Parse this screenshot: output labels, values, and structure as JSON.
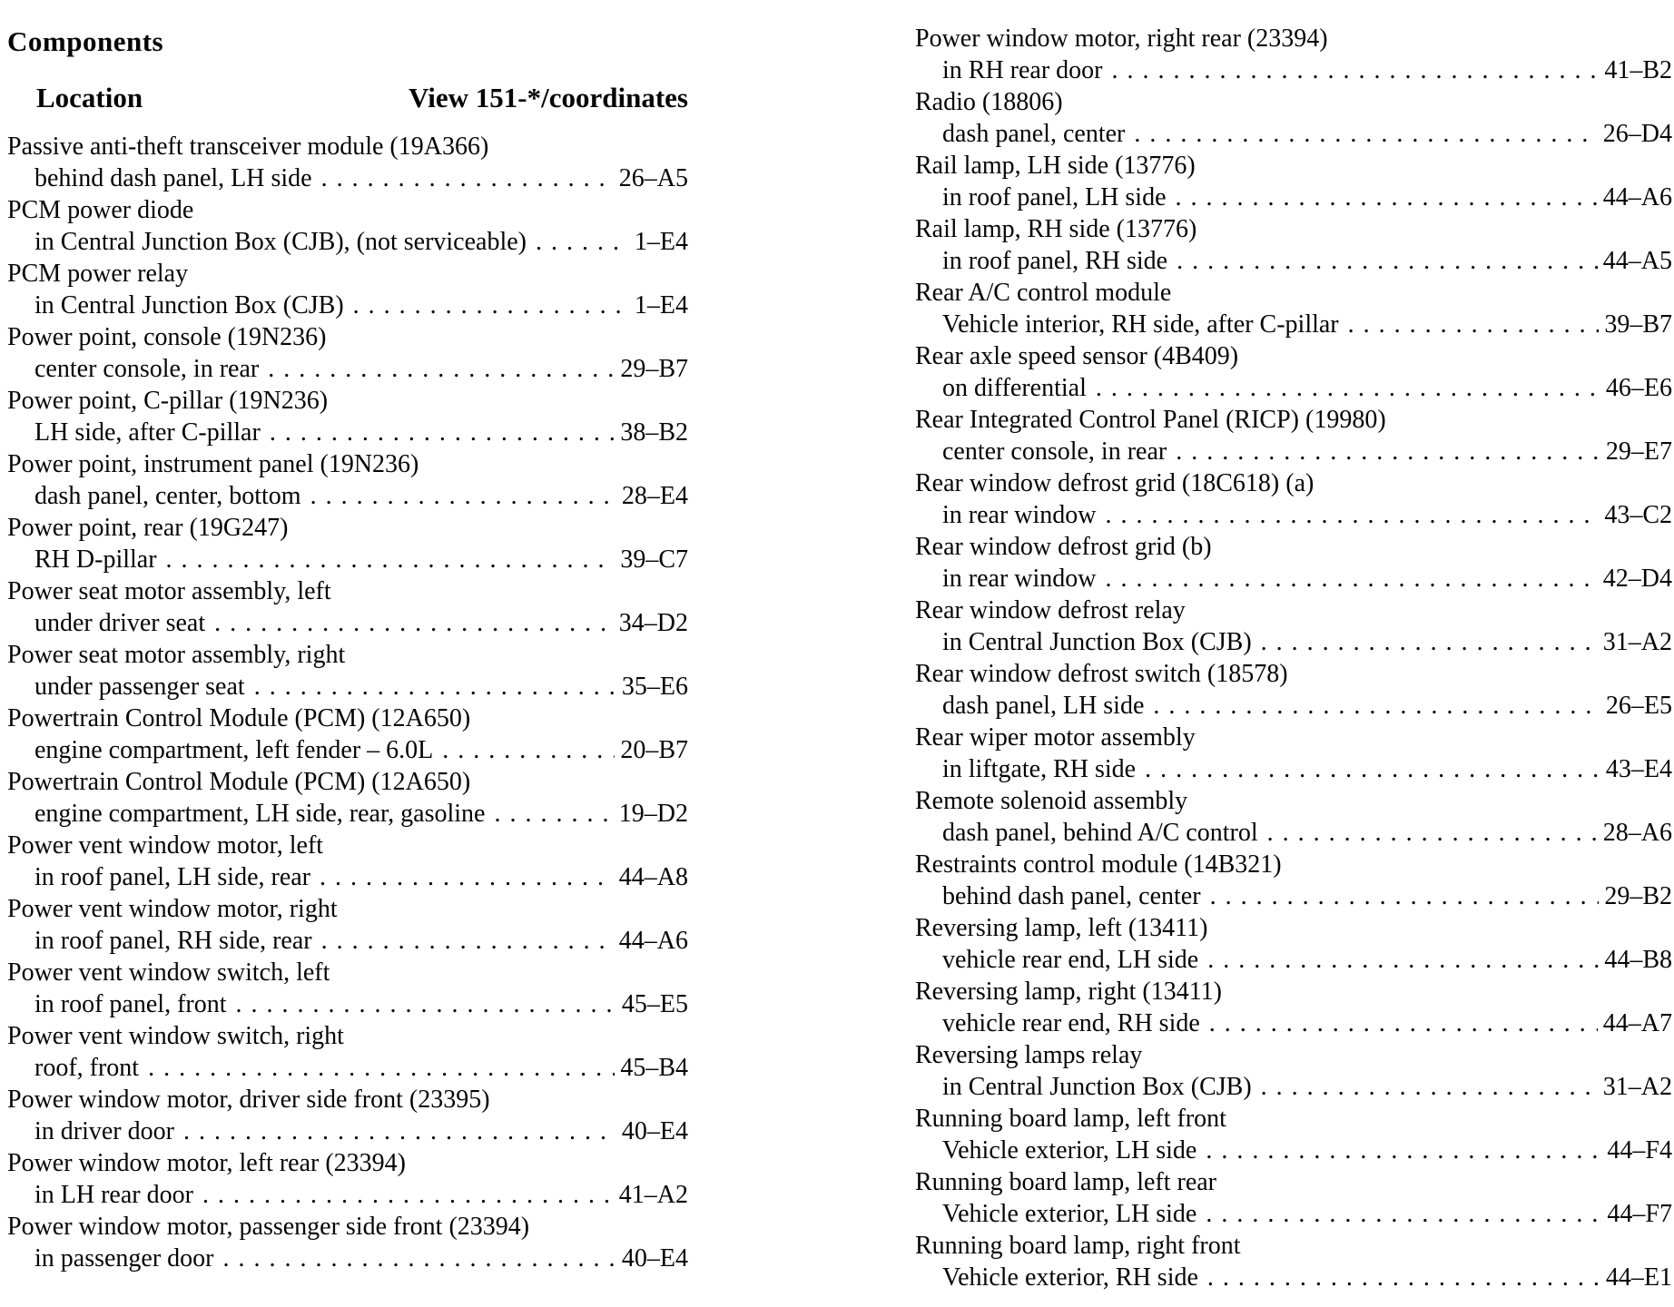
{
  "header": {
    "title": "Components",
    "col_location": "Location",
    "col_view": "View 151-*/coordinates"
  },
  "columns": {
    "left": [
      {
        "name": "Passive anti-theft transceiver module (19A366)",
        "location": "behind dash panel, LH side",
        "coord": "26–A5"
      },
      {
        "name": "PCM power diode",
        "location": "in Central Junction Box (CJB), (not serviceable)",
        "coord": "1–E4"
      },
      {
        "name": "PCM power relay",
        "location": "in Central Junction Box (CJB)",
        "coord": "1–E4"
      },
      {
        "name": "Power point, console (19N236)",
        "location": "center console, in rear",
        "coord": "29–B7"
      },
      {
        "name": "Power point, C-pillar (19N236)",
        "location": "LH side, after C-pillar",
        "coord": "38–B2"
      },
      {
        "name": "Power point, instrument panel (19N236)",
        "location": "dash panel, center, bottom",
        "coord": "28–E4"
      },
      {
        "name": "Power point, rear (19G247)",
        "location": "RH D-pillar",
        "coord": "39–C7"
      },
      {
        "name": "Power seat motor assembly, left",
        "location": "under driver seat",
        "coord": "34–D2"
      },
      {
        "name": "Power seat motor assembly, right",
        "location": "under passenger seat",
        "coord": "35–E6"
      },
      {
        "name": "Powertrain Control Module (PCM) (12A650)",
        "location": "engine compartment, left fender – 6.0L",
        "coord": "20–B7"
      },
      {
        "name": "Powertrain Control Module (PCM) (12A650)",
        "location": "engine compartment, LH side, rear, gasoline",
        "coord": "19–D2"
      },
      {
        "name": "Power vent window motor, left",
        "location": "in roof panel, LH side, rear",
        "coord": "44–A8"
      },
      {
        "name": "Power vent window motor, right",
        "location": "in roof panel, RH side, rear",
        "coord": "44–A6"
      },
      {
        "name": "Power vent window switch, left",
        "location": "in roof panel, front",
        "coord": "45–E5"
      },
      {
        "name": "Power vent window switch, right",
        "location": "roof, front",
        "coord": "45–B4"
      },
      {
        "name": "Power window motor, driver side front (23395)",
        "location": "in driver door",
        "coord": "40–E4"
      },
      {
        "name": "Power window motor, left rear (23394)",
        "location": "in LH rear door",
        "coord": "41–A2"
      },
      {
        "name": "Power window motor, passenger side front (23394)",
        "location": "in passenger door",
        "coord": "40–E4"
      }
    ],
    "right": [
      {
        "name": "Power window motor, right rear (23394)",
        "location": "in RH rear door",
        "coord": "41–B2"
      },
      {
        "name": "Radio (18806)",
        "location": "dash panel, center",
        "coord": "26–D4"
      },
      {
        "name": "Rail lamp, LH side (13776)",
        "location": "in roof panel, LH side",
        "coord": "44–A6"
      },
      {
        "name": "Rail lamp, RH side (13776)",
        "location": "in roof panel, RH side",
        "coord": "44–A5"
      },
      {
        "name": "Rear A/C control module",
        "location": "Vehicle interior, RH side, after C-pillar",
        "coord": "39–B7"
      },
      {
        "name": "Rear axle speed sensor (4B409)",
        "location": "on differential",
        "coord": "46–E6"
      },
      {
        "name": "Rear Integrated Control Panel (RICP) (19980)",
        "location": "center console, in rear",
        "coord": "29–E7"
      },
      {
        "name": "Rear window defrost grid (18C618) (a)",
        "location": "in rear window",
        "coord": "43–C2"
      },
      {
        "name": "Rear window defrost grid (b)",
        "location": "in rear window",
        "coord": "42–D4"
      },
      {
        "name": "Rear window defrost relay",
        "location": "in Central Junction Box (CJB)",
        "coord": "31–A2"
      },
      {
        "name": "Rear window defrost switch (18578)",
        "location": "dash panel, LH side",
        "coord": "26–E5"
      },
      {
        "name": "Rear wiper motor assembly",
        "location": "in liftgate, RH side",
        "coord": "43–E4"
      },
      {
        "name": "Remote solenoid assembly",
        "location": "dash panel, behind A/C control",
        "coord": "28–A6"
      },
      {
        "name": "Restraints control module (14B321)",
        "location": "behind dash panel, center",
        "coord": "29–B2"
      },
      {
        "name": "Reversing lamp, left (13411)",
        "location": "vehicle rear end, LH side",
        "coord": "44–B8"
      },
      {
        "name": "Reversing lamp, right (13411)",
        "location": "vehicle rear end, RH side",
        "coord": "44–A7"
      },
      {
        "name": "Reversing lamps relay",
        "location": "in Central Junction Box (CJB)",
        "coord": "31–A2"
      },
      {
        "name": "Running board lamp, left front",
        "location": "Vehicle exterior, LH side",
        "coord": "44–F4"
      },
      {
        "name": "Running board lamp, left rear",
        "location": "Vehicle exterior, LH side",
        "coord": "44–F7"
      },
      {
        "name": "Running board lamp, right front",
        "location": "Vehicle exterior, RH side",
        "coord": "44–E1"
      }
    ]
  }
}
